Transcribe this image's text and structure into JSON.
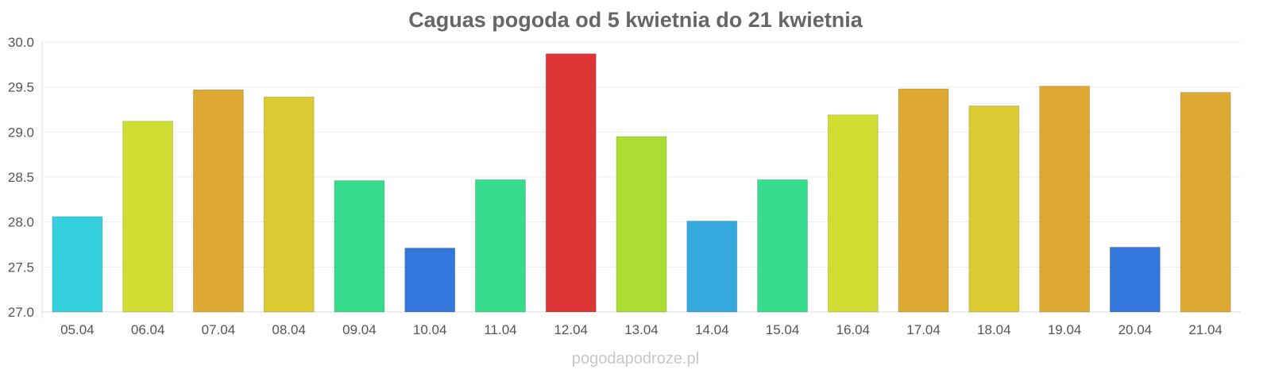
{
  "chart_data": {
    "type": "bar",
    "title": "Caguas pogoda od 5 kwietnia do 21 kwietnia",
    "xlabel": "",
    "ylabel": "",
    "ylim": [
      27.0,
      30.0
    ],
    "yticks": [
      "27.0",
      "27.5",
      "28.0",
      "28.5",
      "29.0",
      "29.5",
      "30.0"
    ],
    "grid": true,
    "categories": [
      "05.04",
      "06.04",
      "07.04",
      "08.04",
      "09.04",
      "10.04",
      "11.04",
      "12.04",
      "13.04",
      "14.04",
      "15.04",
      "16.04",
      "17.04",
      "18.04",
      "19.04",
      "20.04",
      "21.04"
    ],
    "values": [
      28.06,
      29.12,
      29.47,
      29.39,
      28.46,
      27.71,
      28.47,
      29.87,
      28.95,
      28.01,
      28.47,
      29.19,
      29.48,
      29.29,
      29.51,
      27.72,
      29.44
    ],
    "colors": [
      "#33cfdd",
      "#d0dd33",
      "#dda933",
      "#dbcb33",
      "#36dc8c",
      "#3377dd",
      "#36dc8c",
      "#dd3535",
      "#abdd33",
      "#35a8dd",
      "#36dc8c",
      "#d0dd33",
      "#dda933",
      "#dbcb33",
      "#dda933",
      "#3377dd",
      "#dda933"
    ]
  },
  "watermark": "pogodapodroze.pl"
}
